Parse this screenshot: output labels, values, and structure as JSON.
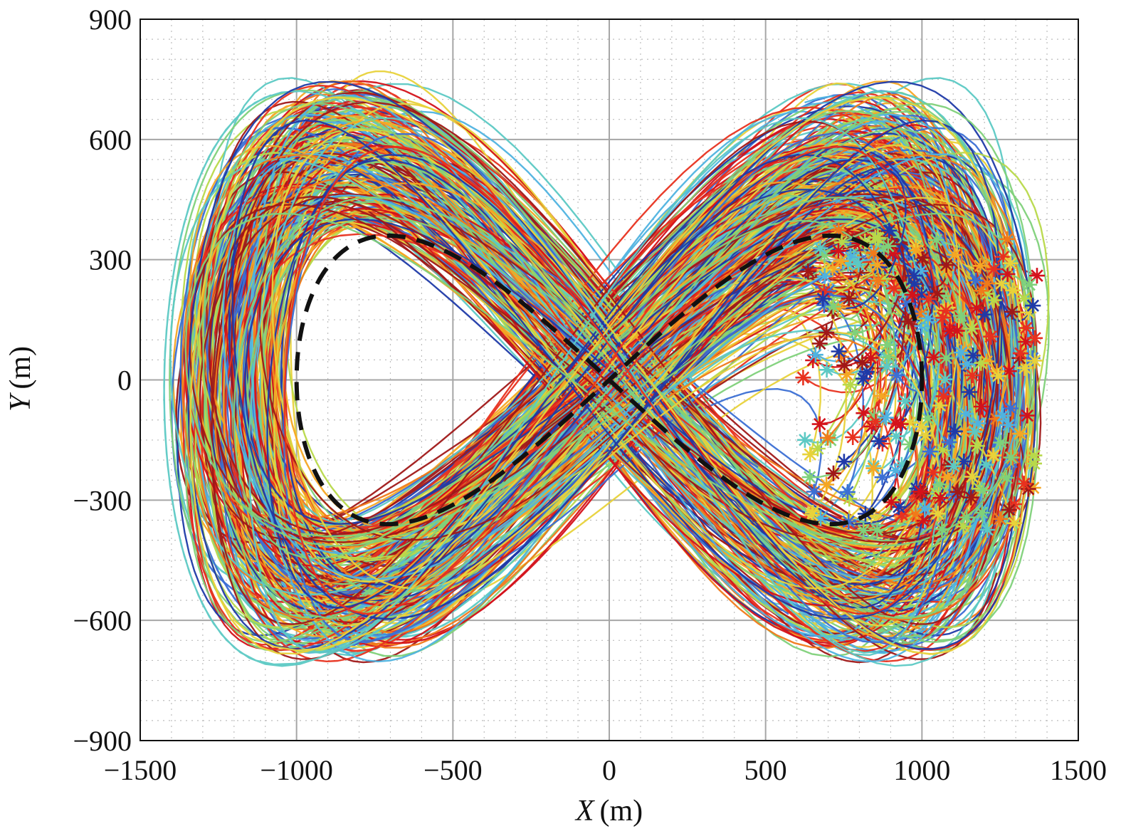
{
  "chart_data": {
    "type": "line",
    "title": "",
    "xlabel": {
      "var": "X",
      "unit": "(m)"
    },
    "ylabel": {
      "var": "Y",
      "unit": "(m)"
    },
    "xlim": [
      -1500,
      1500
    ],
    "ylim": [
      -900,
      900
    ],
    "xticks": [
      -1500,
      -1000,
      -500,
      0,
      500,
      1000,
      1500
    ],
    "yticks": [
      -900,
      -600,
      -300,
      0,
      300,
      600,
      900
    ],
    "xtick_labels": [
      "−1500",
      "−1000",
      "−500",
      "0",
      "500",
      "1000",
      "1500"
    ],
    "ytick_labels": [
      "−900",
      "−600",
      "−300",
      "0",
      "300",
      "600",
      "900"
    ],
    "grid": {
      "major": true,
      "minor": true,
      "major_color": "#a6a6a6",
      "minor_color": "#bdbdbd"
    },
    "legend": "none",
    "reference_path": {
      "name": "",
      "style": "dashed",
      "color": "#111111",
      "shape": "lemniscate of Gerono",
      "x_amplitude": 1000,
      "y_amplitude": 360,
      "center": [
        0,
        0
      ]
    },
    "trajectories": {
      "count_approx": 250,
      "palette": [
        "#1f3aa8",
        "#3b6fd4",
        "#4fb3e0",
        "#5cc9c4",
        "#7fd17a",
        "#b8d94a",
        "#e8d23a",
        "#f5a623",
        "#f07a1a",
        "#e8311f",
        "#d4121a",
        "#a01818"
      ],
      "description_shape": "figure-eight loops around reference path",
      "x_range": [
        -1390,
        1390
      ],
      "y_range": [
        -690,
        775
      ],
      "end_marker": "asterisk",
      "end_points_x_range": [
        600,
        1390
      ],
      "end_points_y_range": [
        -390,
        390
      ]
    }
  }
}
